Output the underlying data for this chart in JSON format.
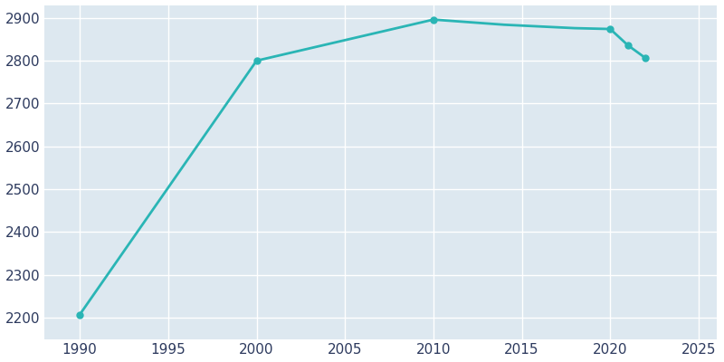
{
  "years": [
    1990,
    2000,
    2010,
    2011,
    2012,
    2013,
    2014,
    2015,
    2016,
    2017,
    2018,
    2019,
    2020,
    2021,
    2022
  ],
  "population": [
    2207,
    2800,
    2896,
    2893,
    2890,
    2887,
    2884,
    2882,
    2880,
    2878,
    2876,
    2875,
    2874,
    2836,
    2806
  ],
  "line_color": "#2ab5b5",
  "marker_years": [
    1990,
    2000,
    2010,
    2020,
    2021,
    2022
  ],
  "marker_values": [
    2207,
    2800,
    2896,
    2874,
    2836,
    2806
  ],
  "axes_background_color": "#dde8f0",
  "figure_background": "#ffffff",
  "xlim": [
    1988,
    2026
  ],
  "ylim": [
    2150,
    2930
  ],
  "xticks": [
    1990,
    1995,
    2000,
    2005,
    2010,
    2015,
    2020,
    2025
  ],
  "yticks": [
    2200,
    2300,
    2400,
    2500,
    2600,
    2700,
    2800,
    2900
  ],
  "tick_color": "#2d3a5e",
  "linewidth": 2.0,
  "marker_size": 5,
  "grid_color": "#ffffff",
  "grid_linewidth": 1.0,
  "tick_fontsize": 11
}
